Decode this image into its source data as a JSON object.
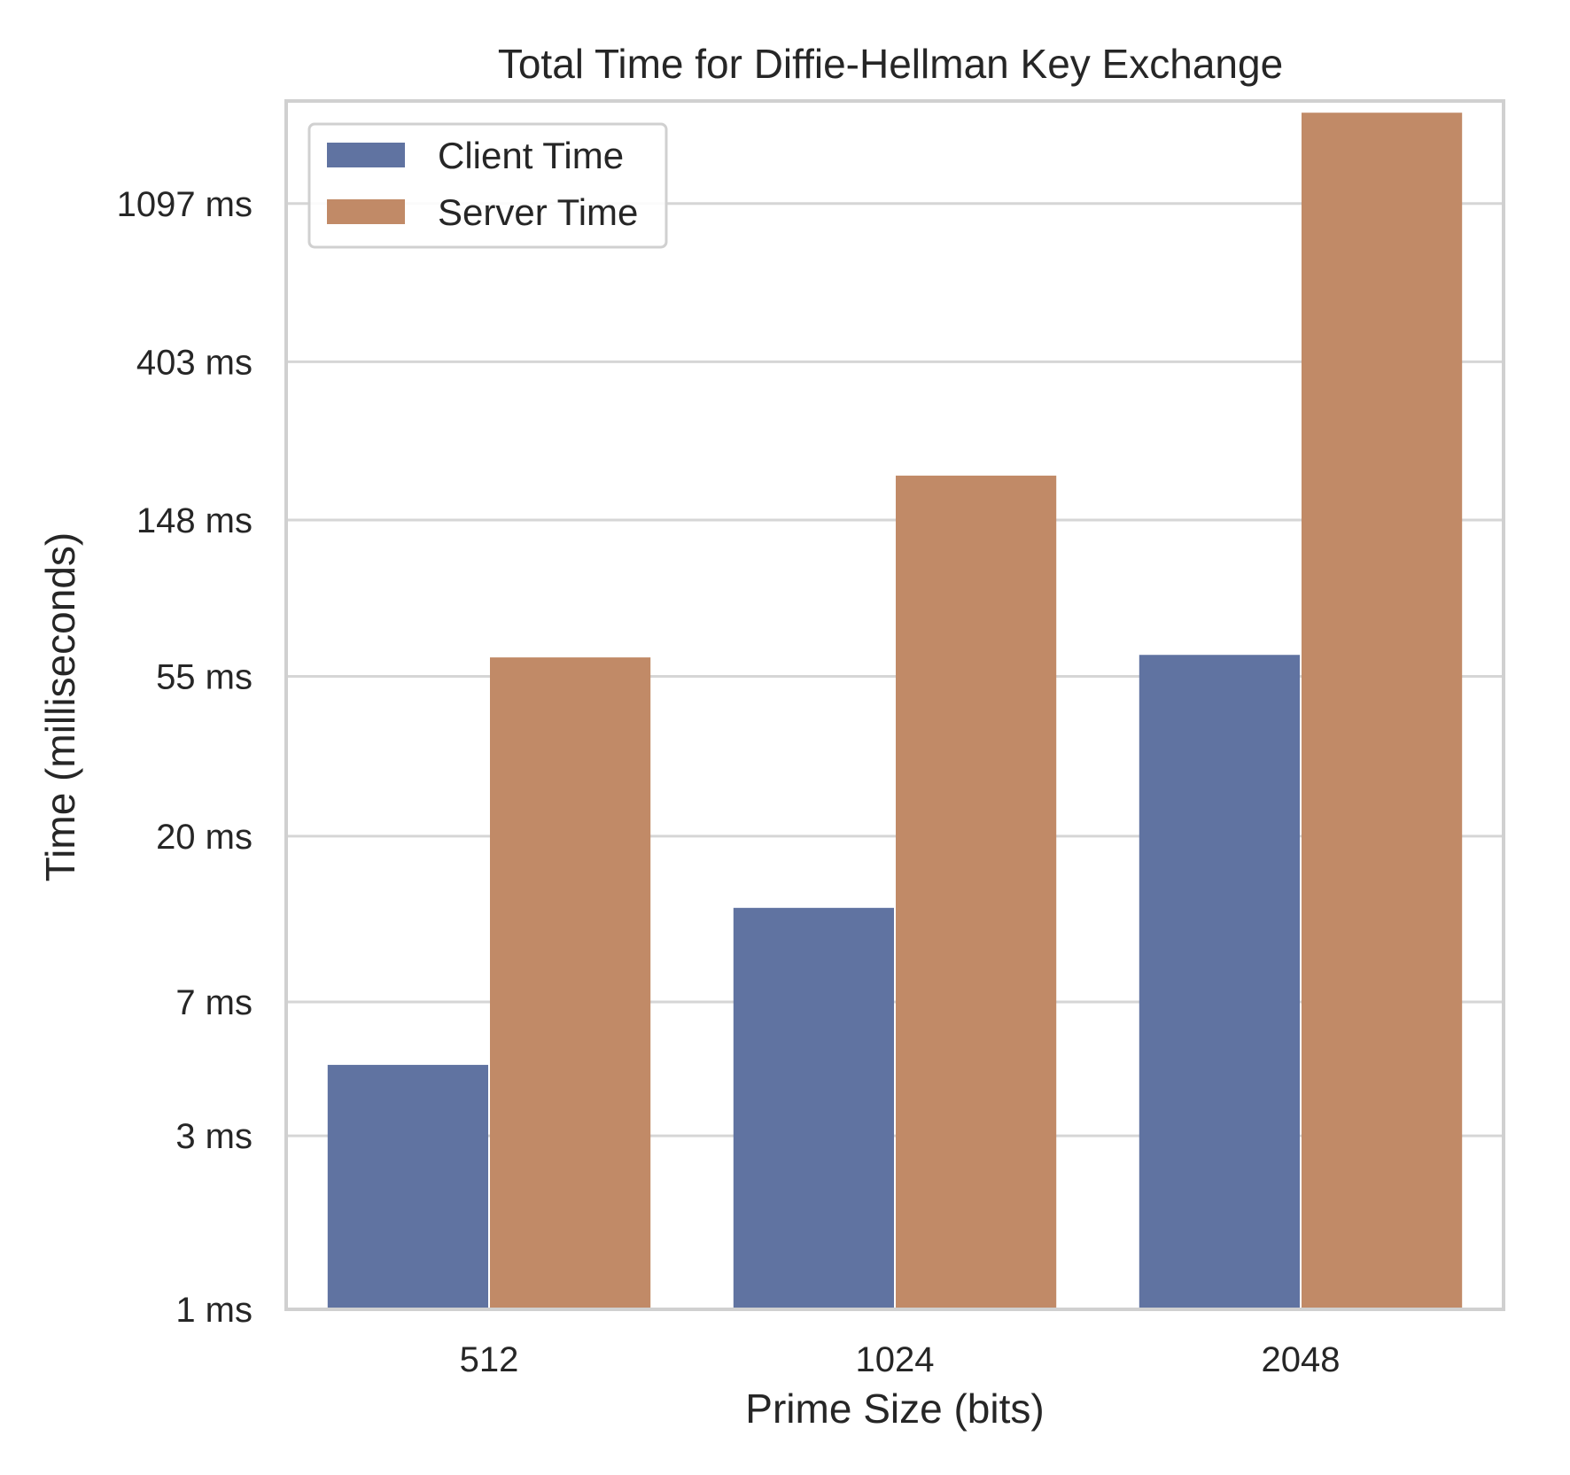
{
  "chart_data": {
    "type": "bar",
    "title": "Total Time for Diffie-Hellman Key Exchange",
    "xlabel": "Prime Size (bits)",
    "ylabel": "Time (milliseconds)",
    "y_scale": "log",
    "ylim": [
      1,
      2100
    ],
    "y_ticks": [
      1,
      3,
      7,
      20,
      55,
      148,
      403,
      1097
    ],
    "y_tick_labels": [
      "1 ms",
      "3 ms",
      "7 ms",
      "20 ms",
      "55 ms",
      "148 ms",
      "403 ms",
      "1097 ms"
    ],
    "categories": [
      "512",
      "1024",
      "2048"
    ],
    "series": [
      {
        "name": "Client Time",
        "values": [
          4.7,
          12.7,
          63
        ],
        "color": "#6073a1"
      },
      {
        "name": "Server Time",
        "values": [
          62,
          196,
          1950
        ],
        "color": "#c18a67"
      }
    ],
    "grid": true,
    "legend_position": "top-left"
  }
}
